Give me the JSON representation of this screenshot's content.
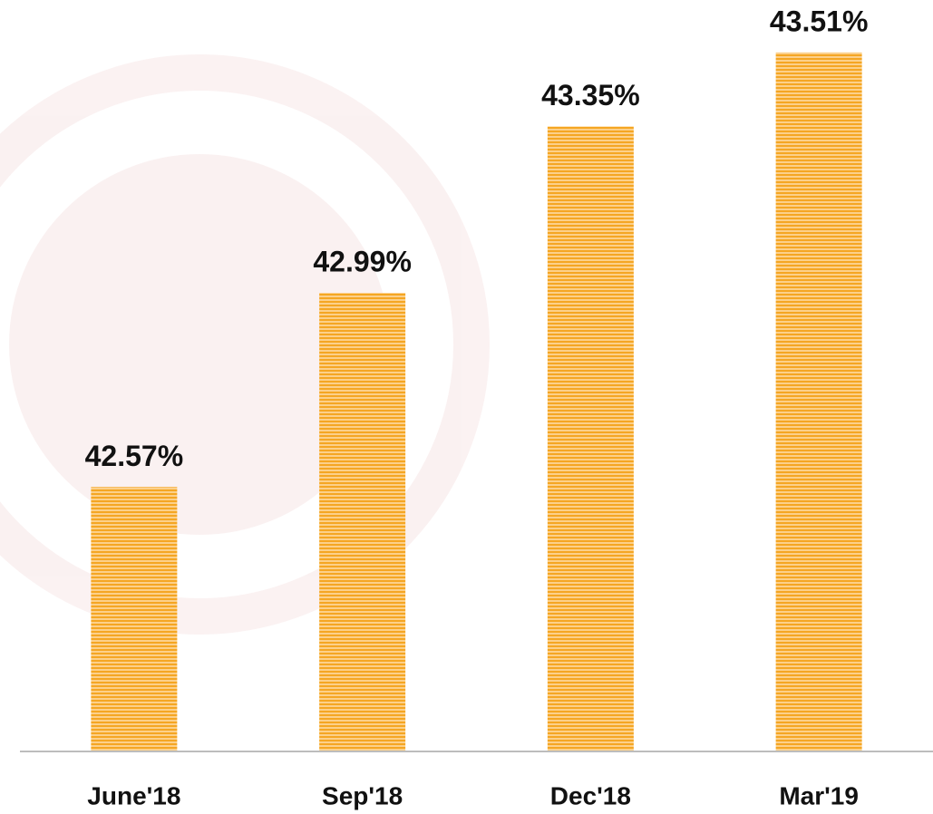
{
  "chart_data": {
    "type": "bar",
    "categories": [
      "June'18",
      "Sep'18",
      "Dec'18",
      "Mar'19"
    ],
    "values": [
      42.57,
      42.99,
      43.35,
      43.51
    ],
    "value_labels": [
      "42.57%",
      "42.99%",
      "43.35%",
      "43.51%"
    ],
    "color": "#f5a623",
    "ylim": [
      42,
      43.6
    ]
  }
}
